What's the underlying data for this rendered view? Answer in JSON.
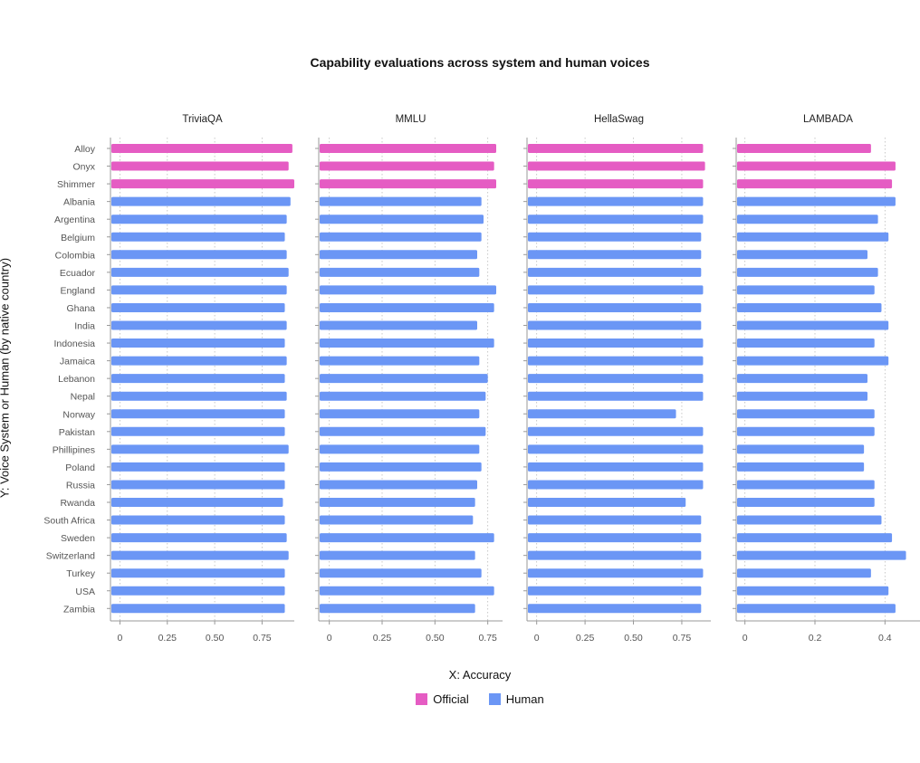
{
  "chart_data": {
    "type": "bar",
    "orientation": "horizontal",
    "title": "Capability evaluations across system and human voices",
    "xlabel": "X: Accuracy",
    "ylabel": "Y: Voice System or Human (by native country)",
    "legend": {
      "placement": "bottom-center",
      "entries": [
        {
          "label": "Official",
          "color": "#e55cc3"
        },
        {
          "label": "Human",
          "color": "#6b96f5"
        }
      ]
    },
    "categories": [
      "Alloy",
      "Onyx",
      "Shimmer",
      "Albania",
      "Argentina",
      "Belgium",
      "Colombia",
      "Ecuador",
      "England",
      "Ghana",
      "India",
      "Indonesia",
      "Jamaica",
      "Lebanon",
      "Nepal",
      "Norway",
      "Pakistan",
      "Phillipines",
      "Poland",
      "Russia",
      "Rwanda",
      "South Africa",
      "Sweden",
      "Switzerland",
      "Turkey",
      "USA",
      "Zambia"
    ],
    "groups": [
      "Official",
      "Official",
      "Official",
      "Human",
      "Human",
      "Human",
      "Human",
      "Human",
      "Human",
      "Human",
      "Human",
      "Human",
      "Human",
      "Human",
      "Human",
      "Human",
      "Human",
      "Human",
      "Human",
      "Human",
      "Human",
      "Human",
      "Human",
      "Human",
      "Human",
      "Human",
      "Human"
    ],
    "grid": "vertical-dotted",
    "panels": [
      {
        "name": "TriviaQA",
        "xlim": [
          -0.05,
          0.92
        ],
        "xticks": [
          0,
          0.25,
          0.5,
          0.75
        ],
        "xtick_labels": [
          "0",
          "0.25",
          "0.50",
          "0.75"
        ],
        "values": [
          0.91,
          0.89,
          0.92,
          0.9,
          0.88,
          0.87,
          0.88,
          0.89,
          0.88,
          0.87,
          0.88,
          0.87,
          0.88,
          0.87,
          0.88,
          0.87,
          0.87,
          0.89,
          0.87,
          0.87,
          0.86,
          0.87,
          0.88,
          0.89,
          0.87,
          0.87,
          0.87
        ]
      },
      {
        "name": "MMLU",
        "xlim": [
          -0.05,
          0.82
        ],
        "xticks": [
          0,
          0.25,
          0.5,
          0.75
        ],
        "xtick_labels": [
          "0",
          "0.25",
          "0.50",
          "0.75"
        ],
        "values": [
          0.79,
          0.78,
          0.79,
          0.72,
          0.73,
          0.72,
          0.7,
          0.71,
          0.79,
          0.78,
          0.7,
          0.78,
          0.71,
          0.75,
          0.74,
          0.71,
          0.74,
          0.71,
          0.72,
          0.7,
          0.69,
          0.68,
          0.78,
          0.69,
          0.72,
          0.78,
          0.69
        ]
      },
      {
        "name": "HellaSwag",
        "xlim": [
          -0.05,
          0.9
        ],
        "xticks": [
          0,
          0.25,
          0.5,
          0.75
        ],
        "xtick_labels": [
          "0",
          "0.25",
          "0.50",
          "0.75"
        ],
        "values": [
          0.86,
          0.87,
          0.86,
          0.86,
          0.86,
          0.85,
          0.85,
          0.85,
          0.86,
          0.85,
          0.85,
          0.86,
          0.86,
          0.86,
          0.86,
          0.72,
          0.86,
          0.86,
          0.86,
          0.86,
          0.77,
          0.85,
          0.85,
          0.85,
          0.86,
          0.85,
          0.85
        ]
      },
      {
        "name": "LAMBADA",
        "xlim": [
          -0.025,
          0.5
        ],
        "xticks": [
          0,
          0.2,
          0.4
        ],
        "xtick_labels": [
          "0",
          "0.2",
          "0.4"
        ],
        "values": [
          0.36,
          0.43,
          0.42,
          0.43,
          0.38,
          0.41,
          0.35,
          0.38,
          0.37,
          0.39,
          0.41,
          0.37,
          0.41,
          0.35,
          0.35,
          0.37,
          0.37,
          0.34,
          0.34,
          0.37,
          0.37,
          0.39,
          0.42,
          0.46,
          0.36,
          0.41,
          0.43
        ]
      }
    ]
  }
}
